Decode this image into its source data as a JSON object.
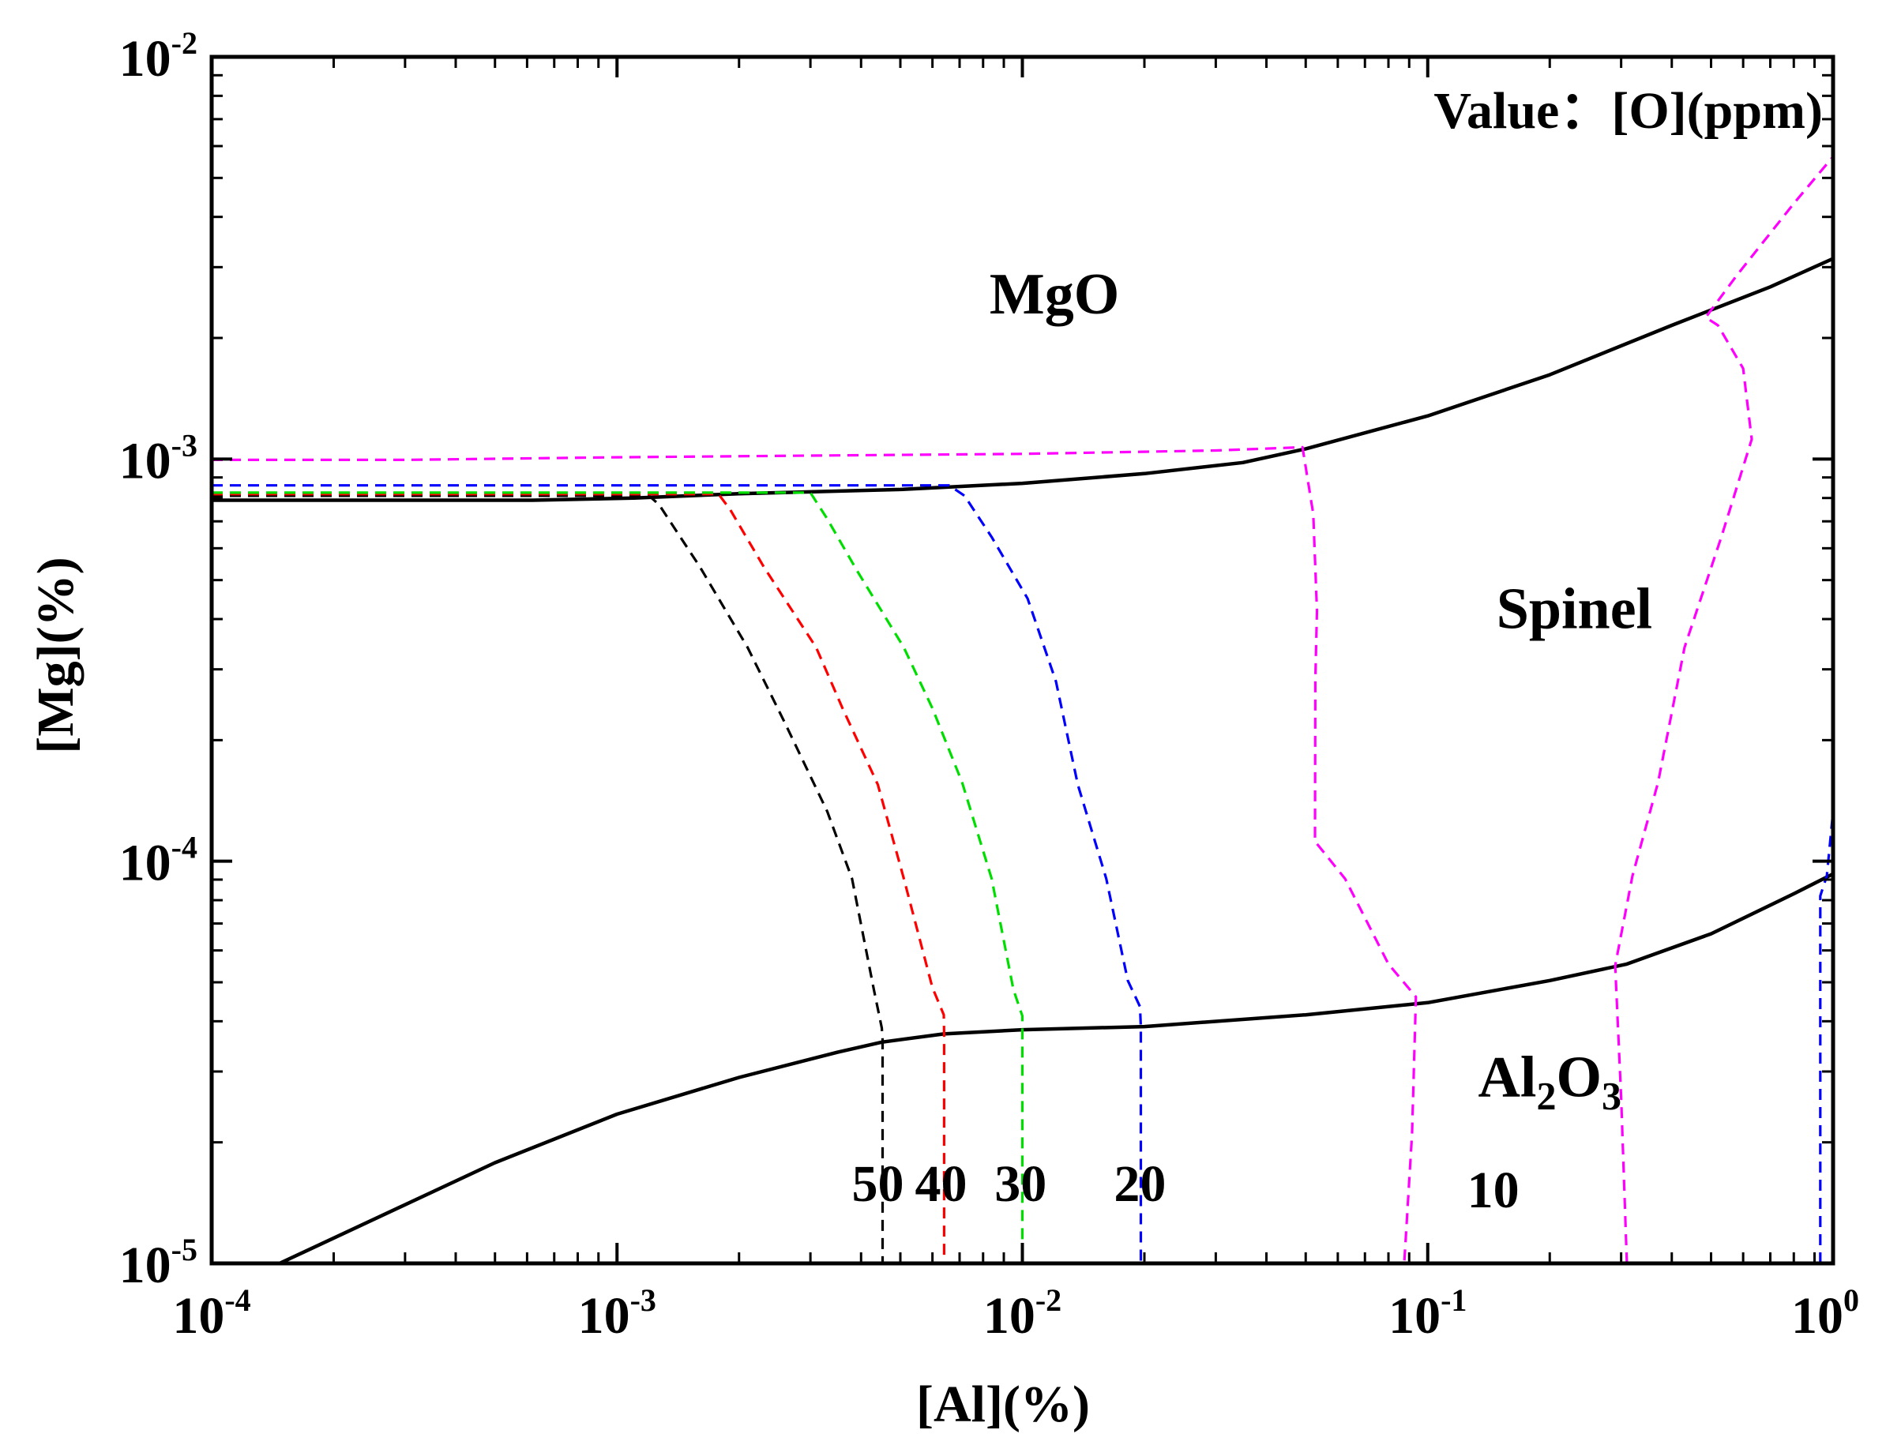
{
  "chart_data": {
    "type": "line",
    "title": "",
    "xlabel": "[Al](%)",
    "ylabel": "[Mg](%)",
    "xscale": "log",
    "yscale": "log",
    "xlim": [
      0.0001,
      1
    ],
    "ylim": [
      1e-05,
      0.01
    ],
    "grid": false,
    "x_ticks": [
      {
        "value": 0.0001,
        "base": "10",
        "exp": "-4"
      },
      {
        "value": 0.001,
        "base": "10",
        "exp": "-3"
      },
      {
        "value": 0.01,
        "base": "10",
        "exp": "-2"
      },
      {
        "value": 0.1,
        "base": "10",
        "exp": "-1"
      },
      {
        "value": 1,
        "base": "10",
        "exp": "0"
      }
    ],
    "y_ticks": [
      {
        "value": 1e-05,
        "base": "10",
        "exp": "-5"
      },
      {
        "value": 0.0001,
        "base": "10",
        "exp": "-4"
      },
      {
        "value": 0.001,
        "base": "10",
        "exp": "-3"
      },
      {
        "value": 0.01,
        "base": "10",
        "exp": "-2"
      }
    ],
    "legend_note": {
      "text": "Value：[O](ppm)"
    },
    "region_labels": [
      {
        "id": "mgo",
        "text": "MgO",
        "x": 0.012,
        "y": 0.0023
      },
      {
        "id": "spinel",
        "text": "Spinel",
        "x": 0.23,
        "y": 0.00038
      },
      {
        "id": "al2o3",
        "main": "Al",
        "sub1": "2",
        "mid": "O",
        "sub2": "3",
        "x": 0.2,
        "y": 2.6e-05
      }
    ],
    "iso_labels": [
      {
        "text": "50",
        "x": 0.0044,
        "y": 1.43e-05
      },
      {
        "text": "40",
        "x": 0.0063,
        "y": 1.43e-05
      },
      {
        "text": "30",
        "x": 0.0099,
        "y": 1.43e-05
      },
      {
        "text": "20",
        "x": 0.0195,
        "y": 1.43e-05
      },
      {
        "text": "10",
        "x": 0.145,
        "y": 1.38e-05
      }
    ],
    "series": [
      {
        "name": "MgO/Spinel boundary",
        "color": "#000000",
        "style": "solid",
        "points": [
          [
            0.0001,
            0.00079
          ],
          [
            0.0003,
            0.00079
          ],
          [
            0.00062,
            0.00079
          ],
          [
            0.0011,
            0.0008
          ],
          [
            0.002,
            0.00082
          ],
          [
            0.005,
            0.00084
          ],
          [
            0.01,
            0.00087
          ],
          [
            0.02,
            0.00092
          ],
          [
            0.035,
            0.00098
          ],
          [
            0.05,
            0.00106
          ],
          [
            0.1,
            0.00128
          ],
          [
            0.2,
            0.00162
          ],
          [
            0.4,
            0.00215
          ],
          [
            0.7,
            0.00268
          ],
          [
            1.0,
            0.00315
          ]
        ]
      },
      {
        "name": "Spinel/Al2O3 boundary",
        "color": "#000000",
        "style": "solid",
        "points": [
          [
            0.000147,
            1e-05
          ],
          [
            0.0005,
            1.78e-05
          ],
          [
            0.001,
            2.35e-05
          ],
          [
            0.002,
            2.9e-05
          ],
          [
            0.0035,
            3.35e-05
          ],
          [
            0.0045,
            3.55e-05
          ],
          [
            0.0064,
            3.72e-05
          ],
          [
            0.01,
            3.81e-05
          ],
          [
            0.02,
            3.88e-05
          ],
          [
            0.05,
            4.15e-05
          ],
          [
            0.1,
            4.45e-05
          ],
          [
            0.2,
            5.05e-05
          ],
          [
            0.31,
            5.55e-05
          ],
          [
            0.5,
            6.6e-05
          ],
          [
            0.8,
            8.3e-05
          ],
          [
            1.0,
            9.3e-05
          ]
        ]
      },
      {
        "name": "50",
        "color": "#000000",
        "style": "dashed",
        "points": [
          [
            0.0001,
            0.00081
          ],
          [
            0.0012,
            0.00081
          ],
          [
            0.00127,
            0.00077
          ],
          [
            0.0016,
            0.00054
          ],
          [
            0.0021,
            0.00034
          ],
          [
            0.0026,
            0.00022
          ],
          [
            0.0033,
            0.000133
          ],
          [
            0.0038,
            9.05e-05
          ],
          [
            0.0043,
            4.8e-05
          ],
          [
            0.0045,
            3.85e-05
          ],
          [
            0.00452,
            3.6e-05
          ],
          [
            0.00452,
            1e-05
          ]
        ]
      },
      {
        "name": "40",
        "color": "#ff0000",
        "style": "dashed",
        "points": [
          [
            0.0001,
            0.000818
          ],
          [
            0.00178,
            0.000818
          ],
          [
            0.0019,
            0.00075
          ],
          [
            0.0023,
            0.00054
          ],
          [
            0.0031,
            0.00034
          ],
          [
            0.0036,
            0.00024
          ],
          [
            0.0044,
            0.000155
          ],
          [
            0.0051,
            9.05e-05
          ],
          [
            0.006,
            4.85e-05
          ],
          [
            0.0064,
            4.15e-05
          ],
          [
            0.00641,
            3.72e-05
          ],
          [
            0.00641,
            1e-05
          ]
        ]
      },
      {
        "name": "30",
        "color": "#00dd00",
        "style": "dashed",
        "points": [
          [
            0.0001,
            0.000825
          ],
          [
            0.003,
            0.000825
          ],
          [
            0.0033,
            0.00071
          ],
          [
            0.0039,
            0.00053
          ],
          [
            0.0051,
            0.00034
          ],
          [
            0.006,
            0.00024
          ],
          [
            0.0071,
            0.000157
          ],
          [
            0.0084,
            9.05e-05
          ],
          [
            0.0095,
            4.8e-05
          ],
          [
            0.01,
            4.12e-05
          ],
          [
            0.01,
            3.81e-05
          ],
          [
            0.01,
            1e-05
          ]
        ]
      },
      {
        "name": "20",
        "color": "#0000ff",
        "style": "dashed",
        "points": [
          [
            0.0001,
            0.00086
          ],
          [
            0.0066,
            0.00086
          ],
          [
            0.0072,
            0.00081
          ],
          [
            0.0084,
            0.00064
          ],
          [
            0.0103,
            0.00045
          ],
          [
            0.0121,
            0.00028
          ],
          [
            0.0137,
            0.000155
          ],
          [
            0.0161,
            9.05e-05
          ],
          [
            0.0182,
            5.05e-05
          ],
          [
            0.0195,
            4.35e-05
          ],
          [
            0.0196,
            3.88e-05
          ],
          [
            0.0196,
            1e-05
          ]
        ]
      },
      {
        "name": "10 (left)",
        "color": "#ff00ff",
        "style": "dashed",
        "points": [
          [
            0.0001,
            0.000995
          ],
          [
            0.0003,
            0.000995
          ],
          [
            0.001,
            0.00101
          ],
          [
            0.003,
            0.00102
          ],
          [
            0.01,
            0.00103
          ],
          [
            0.03,
            0.00105
          ],
          [
            0.0491,
            0.00107
          ],
          [
            0.0522,
            0.00073
          ],
          [
            0.0533,
            0.00042
          ],
          [
            0.0528,
            0.00028
          ],
          [
            0.0527,
            0.000112
          ],
          [
            0.0625,
            9.05e-05
          ],
          [
            0.08,
            5.55e-05
          ],
          [
            0.0935,
            4.6e-05
          ],
          [
            0.0915,
            2.1e-05
          ],
          [
            0.0875,
            1e-05
          ]
        ]
      },
      {
        "name": "10 (right)",
        "color": "#ff00ff",
        "style": "dashed",
        "points": [
          [
            0.31,
            1e-05
          ],
          [
            0.3,
            2.6e-05
          ],
          [
            0.29,
            5.5e-05
          ],
          [
            0.32,
            9.2e-05
          ],
          [
            0.37,
            0.000157
          ],
          [
            0.43,
            0.00034
          ],
          [
            0.53,
            0.00064
          ],
          [
            0.63,
            0.00112
          ],
          [
            0.6,
            0.00168
          ],
          [
            0.52,
            0.00215
          ],
          [
            0.485,
            0.00225
          ],
          [
            0.58,
            0.00287
          ],
          [
            0.8,
            0.00432
          ],
          [
            1.0,
            0.00565
          ]
        ]
      },
      {
        "name": "10 (far right)",
        "color": "#0000ff",
        "style": "dashed",
        "points": [
          [
            0.93,
            1e-05
          ],
          [
            0.93,
            8.2e-05
          ],
          [
            0.965,
            9.2e-05
          ],
          [
            1.0,
            0.000133
          ]
        ]
      }
    ]
  }
}
